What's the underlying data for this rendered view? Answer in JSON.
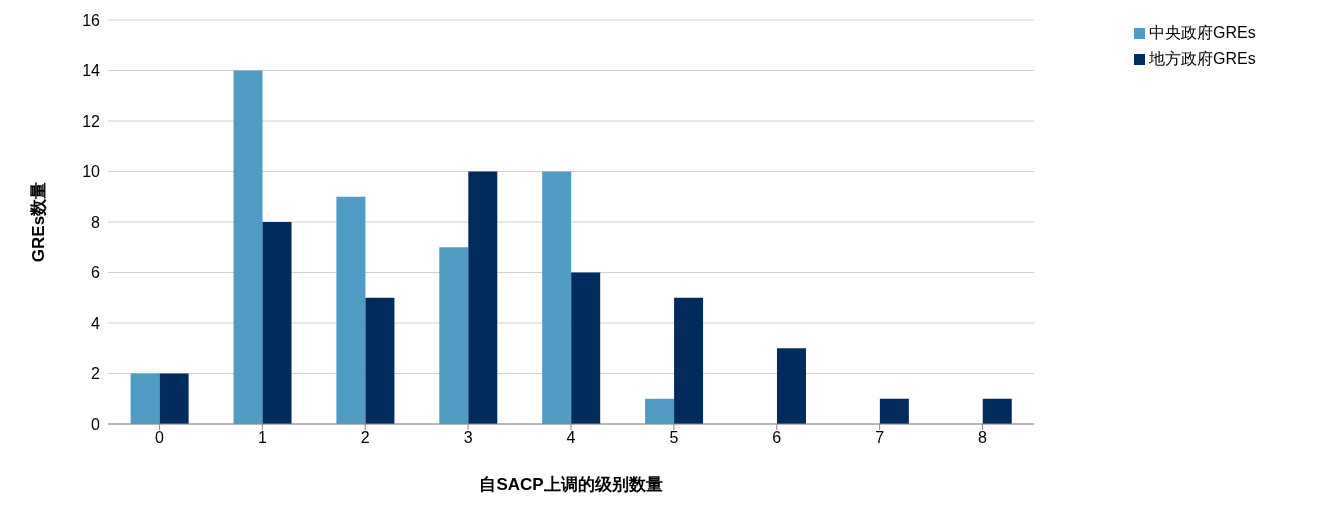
{
  "chart_data": {
    "type": "bar",
    "xlabel": "自SACP上调的级别数量",
    "ylabel": "GREs数量",
    "categories": [
      "0",
      "1",
      "2",
      "3",
      "4",
      "5",
      "6",
      "7",
      "8"
    ],
    "series": [
      {
        "name": "中央政府GREs",
        "color": "#4f9bc4",
        "values": [
          2,
          14,
          9,
          7,
          10,
          1,
          0,
          0,
          0
        ]
      },
      {
        "name": "地方政府GREs",
        "color": "#002b5c",
        "values": [
          2,
          8,
          5,
          10,
          6,
          5,
          3,
          1,
          1
        ]
      }
    ],
    "ylim": [
      0,
      16
    ],
    "yticks": [
      0,
      2,
      4,
      6,
      8,
      10,
      12,
      14,
      16
    ],
    "grid": "y",
    "legend": "top right"
  }
}
